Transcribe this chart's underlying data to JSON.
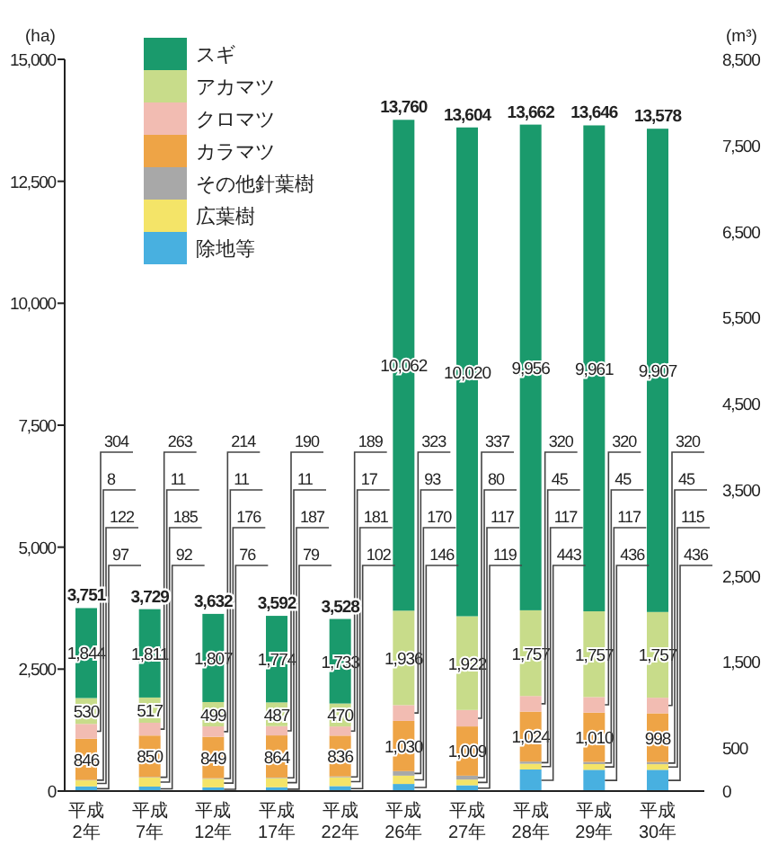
{
  "chart_data": {
    "type": "bar",
    "stacked": true,
    "ylabel": "(ha)",
    "y2label": "(m³)",
    "categories": [
      "平成2年",
      "平成7年",
      "平成12年",
      "平成17年",
      "平成22年",
      "平成26年",
      "平成27年",
      "平成28年",
      "平成29年",
      "平成30年"
    ],
    "series": [
      {
        "name": "除地等",
        "color": "#48b0e0",
        "values": [
          97,
          92,
          76,
          79,
          102,
          146,
          119,
          443,
          436,
          436
        ],
        "value_labels": [
          "97",
          "92",
          "76",
          "79",
          "102",
          "146",
          "119",
          "443",
          "436",
          "436"
        ]
      },
      {
        "name": "広葉樹",
        "color": "#f4e468",
        "values": [
          122,
          185,
          176,
          187,
          181,
          170,
          117,
          117,
          117,
          115
        ],
        "value_labels": [
          "122",
          "185",
          "176",
          "187",
          "181",
          "170",
          "117",
          "117",
          "117",
          "115"
        ]
      },
      {
        "name": "その他針葉樹",
        "color": "#a8a8a8",
        "values": [
          8,
          11,
          11,
          11,
          17,
          93,
          80,
          45,
          45,
          45
        ],
        "value_labels": [
          "8",
          "11",
          "11",
          "11",
          "17",
          "93",
          "80",
          "45",
          "45",
          "45"
        ]
      },
      {
        "name": "カラマツ",
        "color": "#eea446",
        "values": [
          846,
          850,
          849,
          864,
          836,
          1030,
          1009,
          1024,
          1010,
          998
        ],
        "value_labels": [
          "846",
          "850",
          "849",
          "864",
          "836",
          "1,030",
          "1,009",
          "1,024",
          "1,010",
          "998"
        ]
      },
      {
        "name": "クロマツ",
        "color": "#f2bcb2",
        "values": [
          304,
          263,
          214,
          190,
          189,
          323,
          337,
          320,
          320,
          320
        ],
        "value_labels": [
          "304",
          "263",
          "214",
          "190",
          "189",
          "323",
          "337",
          "320",
          "320",
          "320"
        ]
      },
      {
        "name": "アカマツ",
        "color": "#c8dc8a",
        "values": [
          530,
          517,
          499,
          487,
          470,
          1936,
          1922,
          1757,
          1757,
          1757
        ],
        "value_labels": [
          "530",
          "517",
          "499",
          "487",
          "470",
          "1,936",
          "1,922",
          "1,757",
          "1,757",
          "1,757"
        ]
      },
      {
        "name": "スギ",
        "color": "#1a9a6c",
        "values": [
          1844,
          1811,
          1807,
          1774,
          1733,
          10062,
          10020,
          9956,
          9961,
          9907
        ],
        "value_labels": [
          "1,844",
          "1,811",
          "1,807",
          "1,774",
          "1,733",
          "10,062",
          "10,020",
          "9,956",
          "9,961",
          "9,907"
        ]
      }
    ],
    "totals": [
      "3,751",
      "3,729",
      "3,632",
      "3,592",
      "3,528",
      "13,760",
      "13,604",
      "13,662",
      "13,646",
      "13,578"
    ],
    "legend": "top left",
    "grid": false,
    "ylim": [
      0,
      15000
    ],
    "yticks": [
      0,
      {
        "value": 2500,
        "label": "2,500"
      },
      {
        "value": 5000,
        "label": "5,000"
      },
      {
        "value": 7500,
        "label": "7,500"
      },
      {
        "value": 10000,
        "label": "10,000"
      },
      {
        "value": 12500,
        "label": "12,500"
      },
      {
        "value": 15000,
        "label": "15,000"
      }
    ],
    "y2lim": [
      0,
      8500
    ],
    "y2ticks": [
      0,
      500,
      {
        "value": 1500,
        "label": "1,500"
      },
      {
        "value": 2500,
        "label": "2,500"
      },
      {
        "value": 3500,
        "label": "3,500"
      },
      {
        "value": 4500,
        "label": "4,500"
      },
      {
        "value": 5500,
        "label": "5,500"
      },
      {
        "value": 6500,
        "label": "6,500"
      },
      {
        "value": 7500,
        "label": "7,500"
      },
      {
        "value": 8500,
        "label": "8,500"
      }
    ]
  }
}
